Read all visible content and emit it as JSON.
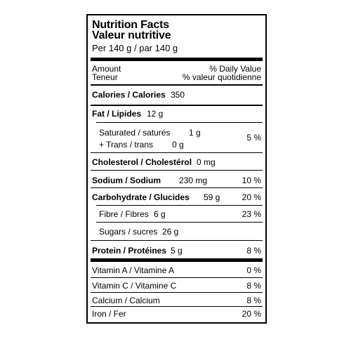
{
  "header": {
    "title_en": "Nutrition Facts",
    "title_fr": "Valeur nutritive",
    "serving": "Per 140 g / par 140 g"
  },
  "column_heads": {
    "amount_en": "Amount",
    "amount_fr": "Teneur",
    "dv_en": "% Daily Value",
    "dv_fr": "% valeur quotidienne"
  },
  "nutrients": {
    "calories": {
      "label": "Calories / Calories",
      "amount": "350"
    },
    "fat": {
      "label": "Fat / Lipides",
      "amount": "12 g"
    },
    "saturated": {
      "label": "Saturated / saturés",
      "amount": "1 g"
    },
    "trans": {
      "label": "+ Trans /  trans",
      "amount": "0 g"
    },
    "sat_trans_dv": "5 %",
    "cholesterol": {
      "label": "Cholesterol / Cholestérol",
      "amount": "0 mg"
    },
    "sodium": {
      "label": "Sodium / Sodium",
      "amount": "230 mg",
      "dv": "10 %"
    },
    "carbohydrate": {
      "label": "Carbohydrate / Glucides",
      "amount": "59 g",
      "dv": "20 %"
    },
    "fibre": {
      "label": "Fibre / Fibres",
      "amount": "6 g",
      "dv": "23 %"
    },
    "sugars": {
      "label": "Sugars / sucres",
      "amount": "26 g"
    },
    "protein": {
      "label": "Protein / Protéines",
      "amount": "5 g",
      "dv": "8 %"
    }
  },
  "vitamins": {
    "vitamin_a": {
      "label": "Vitamin A  /  Vitamine A",
      "dv": "0 %"
    },
    "vitamin_c": {
      "label": "Vitamin C  /  Vitamine C",
      "dv": "8  %"
    },
    "calcium": {
      "label": "Calcium /  Calcium",
      "dv": "8 %"
    },
    "iron": {
      "label": "Iron / Fer",
      "dv": "20 %"
    }
  }
}
